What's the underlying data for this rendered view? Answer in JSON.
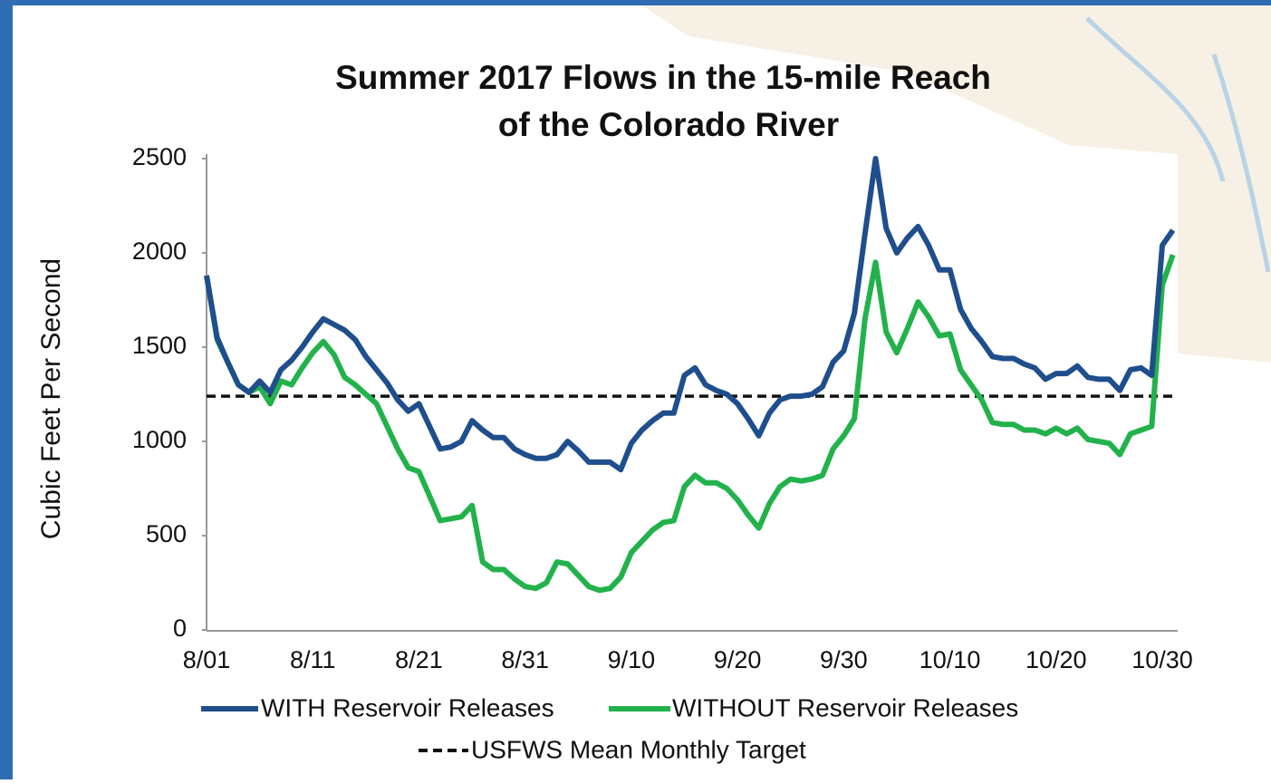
{
  "chart_data": {
    "type": "line",
    "title": [
      "Summer 2017 Flows in the 15-mile Reach",
      "of the Colorado River"
    ],
    "y_label": "Cubic Feet Per  Second",
    "categories": [
      "8/01",
      null,
      null,
      null,
      null,
      null,
      null,
      null,
      null,
      null,
      "8/11",
      null,
      null,
      null,
      null,
      null,
      null,
      null,
      null,
      null,
      "8/21",
      null,
      null,
      null,
      null,
      null,
      null,
      null,
      null,
      null,
      "8/31",
      null,
      null,
      null,
      null,
      null,
      null,
      null,
      null,
      null,
      "9/10",
      null,
      null,
      null,
      null,
      null,
      null,
      null,
      null,
      null,
      "9/20",
      null,
      null,
      null,
      null,
      null,
      null,
      null,
      null,
      null,
      "9/30",
      null,
      null,
      null,
      null,
      null,
      null,
      null,
      null,
      null,
      "10/10",
      null,
      null,
      null,
      null,
      null,
      null,
      null,
      null,
      null,
      "10/20",
      null,
      null,
      null,
      null,
      null,
      null,
      null,
      null,
      null,
      "10/30",
      null
    ],
    "series": [
      {
        "name": "WITH Reservoir Releases",
        "color": "#1f4e8c",
        "values": [
          1880,
          1550,
          1420,
          1300,
          1260,
          1320,
          1260,
          1380,
          1430,
          1500,
          1580,
          1650,
          1620,
          1590,
          1540,
          1450,
          1380,
          1310,
          1220,
          1160,
          1200,
          1080,
          960,
          970,
          1000,
          1110,
          1060,
          1020,
          1020,
          960,
          930,
          910,
          910,
          930,
          1000,
          950,
          890,
          890,
          890,
          850,
          990,
          1060,
          1110,
          1150,
          1150,
          1350,
          1390,
          1300,
          1270,
          1250,
          1200,
          1120,
          1030,
          1150,
          1220,
          1240,
          1240,
          1250,
          1290,
          1420,
          1480,
          1680,
          2100,
          2500,
          2130,
          2000,
          2080,
          2140,
          2040,
          1910,
          1910,
          1700,
          1600,
          1530,
          1450,
          1440,
          1440,
          1410,
          1390,
          1330,
          1360,
          1360,
          1400,
          1340,
          1330,
          1330,
          1270,
          1380,
          1390,
          1350,
          2040,
          2120
        ]
      },
      {
        "name": "WITHOUT Reservoir Releases",
        "color": "#22b24c",
        "values": [
          1880,
          1540,
          1420,
          1300,
          1260,
          1290,
          1200,
          1320,
          1300,
          1390,
          1470,
          1530,
          1460,
          1340,
          1300,
          1250,
          1200,
          1080,
          960,
          860,
          840,
          710,
          580,
          590,
          600,
          660,
          360,
          320,
          320,
          270,
          230,
          220,
          250,
          360,
          350,
          290,
          230,
          210,
          220,
          280,
          410,
          470,
          530,
          570,
          580,
          760,
          820,
          780,
          780,
          750,
          690,
          610,
          540,
          670,
          760,
          800,
          790,
          800,
          820,
          960,
          1030,
          1120,
          1650,
          1950,
          1580,
          1470,
          1600,
          1740,
          1660,
          1560,
          1570,
          1380,
          1300,
          1220,
          1100,
          1090,
          1090,
          1060,
          1060,
          1040,
          1070,
          1040,
          1070,
          1010,
          1000,
          990,
          930,
          1040,
          1060,
          1080,
          1830,
          1990
        ]
      }
    ],
    "target": {
      "name": "USFWS Mean Monthly Target",
      "value": 1240,
      "color": "#111111"
    },
    "ylim": [
      0,
      2500
    ],
    "yticks": [
      0,
      500,
      1000,
      1500,
      2000,
      2500
    ],
    "grid": false
  }
}
